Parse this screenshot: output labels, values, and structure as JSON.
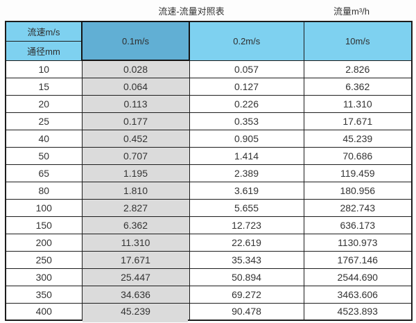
{
  "colors": {
    "header_blue": "#7ed1f0",
    "header_blue_dark": "#61afd4",
    "highlight_gray": "#dbdbdb",
    "border": "#1c1c1c",
    "text": "#363636",
    "background": "#fdfdfd"
  },
  "chart_data": {
    "type": "table",
    "title_left": "流速-流量对照表",
    "title_right": "流量m³/h",
    "header": {
      "top_left_upper": "流速m/s",
      "top_left_lower": "通径mm",
      "velocity_columns": [
        "0.1m/s",
        "0.2m/s",
        "10m/s"
      ]
    },
    "rows": [
      {
        "diameter": "10",
        "values": [
          "0.028",
          "0.057",
          "2.826"
        ]
      },
      {
        "diameter": "15",
        "values": [
          "0.064",
          "0.127",
          "6.362"
        ]
      },
      {
        "diameter": "20",
        "values": [
          "0.113",
          "0.226",
          "11.310"
        ]
      },
      {
        "diameter": "25",
        "values": [
          "0.177",
          "0.353",
          "17.671"
        ]
      },
      {
        "diameter": "40",
        "values": [
          "0.452",
          "0.905",
          "45.239"
        ]
      },
      {
        "diameter": "50",
        "values": [
          "0.707",
          "1.414",
          "70.686"
        ]
      },
      {
        "diameter": "65",
        "values": [
          "1.195",
          "2.389",
          "119.459"
        ]
      },
      {
        "diameter": "80",
        "values": [
          "1.810",
          "3.619",
          "180.956"
        ]
      },
      {
        "diameter": "100",
        "values": [
          "2.827",
          "5.655",
          "282.743"
        ]
      },
      {
        "diameter": "150",
        "values": [
          "6.362",
          "12.723",
          "636.173"
        ]
      },
      {
        "diameter": "200",
        "values": [
          "11.310",
          "22.619",
          "1130.973"
        ]
      },
      {
        "diameter": "250",
        "values": [
          "17.671",
          "35.343",
          "1767.146"
        ]
      },
      {
        "diameter": "300",
        "values": [
          "25.447",
          "50.894",
          "2544.690"
        ]
      },
      {
        "diameter": "350",
        "values": [
          "34.636",
          "69.272",
          "3463.606"
        ]
      },
      {
        "diameter": "400",
        "values": [
          "45.239",
          "90.478",
          "4523.893"
        ]
      }
    ]
  }
}
